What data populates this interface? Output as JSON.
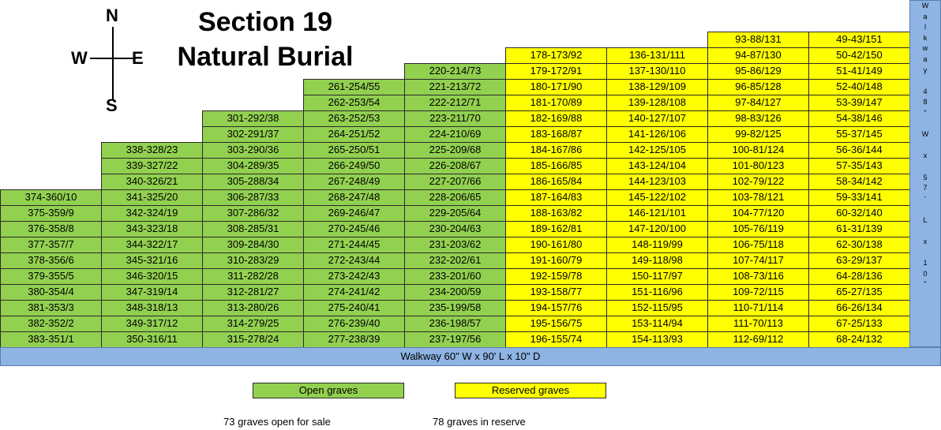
{
  "title": {
    "line1": "Section 19",
    "line2": "Natural Burial"
  },
  "compass": {
    "n": "N",
    "s": "S",
    "e": "E",
    "w": "W"
  },
  "colors": {
    "open": "#92d050",
    "reserved": "#ffff00",
    "walkway": "#8db4e2"
  },
  "columns": [
    {
      "status": "open",
      "cells": [
        "374-360/10",
        "375-359/9",
        "376-358/8",
        "377-357/7",
        "378-356/6",
        "379-355/5",
        "380-354/4",
        "381-353/3",
        "382-352/2",
        "383-351/1"
      ]
    },
    {
      "status": "open",
      "cells": [
        "338-328/23",
        "339-327/22",
        "340-326/21",
        "341-325/20",
        "342-324/19",
        "343-323/18",
        "344-322/17",
        "345-321/16",
        "346-320/15",
        "347-319/14",
        "348-318/13",
        "349-317/12",
        "350-316/11"
      ]
    },
    {
      "status": "open",
      "cells": [
        "301-292/38",
        "302-291/37",
        "303-290/36",
        "304-289/35",
        "305-288/34",
        "306-287/33",
        "307-286/32",
        "308-285/31",
        "309-284/30",
        "310-283/29",
        "311-282/28",
        "312-281/27",
        "313-280/26",
        "314-279/25",
        "315-278/24"
      ]
    },
    {
      "status": "open",
      "cells": [
        "261-254/55",
        "262-253/54",
        "263-252/53",
        "264-251/52",
        "265-250/51",
        "266-249/50",
        "267-248/49",
        "268-247/48",
        "269-246/47",
        "270-245/46",
        "271-244/45",
        "272-243/44",
        "273-242/43",
        "274-241/42",
        "275-240/41",
        "276-239/40",
        "277-238/39"
      ]
    },
    {
      "status": "open",
      "cells": [
        "220-214/73",
        "221-213/72",
        "222-212/71",
        "223-211/70",
        "224-210/69",
        "225-209/68",
        "226-208/67",
        "227-207/66",
        "228-206/65",
        "229-205/64",
        "230-204/63",
        "231-203/62",
        "232-202/61",
        "233-201/60",
        "234-200/59",
        "235-199/58",
        "236-198/57",
        "237-197/56"
      ]
    },
    {
      "status": "reserved",
      "cells": [
        "178-173/92",
        "179-172/91",
        "180-171/90",
        "181-170/89",
        "182-169/88",
        "183-168/87",
        "184-167/86",
        "185-166/85",
        "186-165/84",
        "187-164/83",
        "188-163/82",
        "189-162/81",
        "190-161/80",
        "191-160/79",
        "192-159/78",
        "193-158/77",
        "194-157/76",
        "195-156/75",
        "196-155/74"
      ]
    },
    {
      "status": "reserved",
      "cells": [
        "136-131/111",
        "137-130/110",
        "138-129/109",
        "139-128/108",
        "140-127/107",
        "141-126/106",
        "142-125/105",
        "143-124/104",
        "144-123/103",
        "145-122/102",
        "146-121/101",
        "147-120/100",
        "148-119/99",
        "149-118/98",
        "150-117/97",
        "151-116/96",
        "152-115/95",
        "153-114/94",
        "154-113/93"
      ]
    },
    {
      "status": "reserved",
      "cells": [
        "93-88/131",
        "94-87/130",
        "95-86/129",
        "96-85/128",
        "97-84/127",
        "98-83/126",
        "99-82/125",
        "100-81/124",
        "101-80/123",
        "102-79/122",
        "103-78/121",
        "104-77/120",
        "105-76/119",
        "106-75/118",
        "107-74/117",
        "108-73/116",
        "109-72/115",
        "110-71/114",
        "111-70/113",
        "112-69/112"
      ]
    },
    {
      "status": "reserved",
      "cells": [
        "49-43/151",
        "50-42/150",
        "51-41/149",
        "52-40/148",
        "53-39/147",
        "54-38/146",
        "55-37/145",
        "56-36/144",
        "57-35/143",
        "58-34/142",
        "59-33/141",
        "60-32/140",
        "61-31/139",
        "62-30/138",
        "63-29/137",
        "64-28/136",
        "65-27/135",
        "66-26/134",
        "67-25/133",
        "68-24/132"
      ]
    }
  ],
  "walkway_bottom": "Walkway    60\" W x  90' L  x 10\" D",
  "walkway_right": [
    "W",
    "a",
    "l",
    "k",
    "w",
    "a",
    "y",
    "",
    "4",
    "8",
    "\"",
    "",
    "W",
    "",
    "x",
    "",
    "5",
    "7",
    "'",
    "",
    "L",
    "",
    "x",
    "",
    "1",
    "0",
    "\""
  ],
  "legend": {
    "open": "Open graves",
    "reserved": "Reserved graves"
  },
  "counts": {
    "open": "73 graves open for sale",
    "reserved": "78 graves in reserve"
  }
}
